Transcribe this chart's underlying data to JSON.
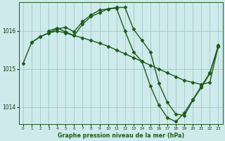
{
  "background_color": "#ceeaea",
  "line_color": "#1a5c1a",
  "grid_color": "#a0c8c8",
  "title": "Graphe pression niveau de la mer (hPa)",
  "xlim": [
    -0.5,
    23.5
  ],
  "ylim": [
    1013.55,
    1016.75
  ],
  "yticks": [
    1014,
    1015,
    1016
  ],
  "xticks": [
    0,
    1,
    2,
    3,
    4,
    5,
    6,
    7,
    8,
    9,
    10,
    11,
    12,
    13,
    14,
    15,
    16,
    17,
    18,
    19,
    20,
    21,
    22,
    23
  ],
  "series": [
    {
      "x": [
        0,
        1,
        2,
        3,
        4,
        5,
        6,
        7,
        8,
        9,
        10,
        11,
        12,
        13,
        14,
        15,
        16,
        17,
        18,
        19,
        20,
        21,
        22,
        23
      ],
      "y": [
        1015.15,
        1015.7,
        1015.85,
        1015.95,
        1016.0,
        1015.95,
        1015.88,
        1015.82,
        1015.75,
        1015.68,
        1015.6,
        1015.5,
        1015.4,
        1015.3,
        1015.2,
        1015.1,
        1015.0,
        1014.9,
        1014.8,
        1014.7,
        1014.65,
        1014.6,
        1014.65,
        1015.6
      ]
    },
    {
      "x": [
        1,
        2,
        3,
        4,
        5,
        6,
        7,
        8,
        9,
        10,
        11,
        12,
        13,
        14,
        15,
        16,
        17,
        18,
        19,
        20,
        21,
        22,
        23
      ],
      "y": [
        1015.7,
        1015.85,
        1015.95,
        1016.05,
        1016.1,
        1015.98,
        1016.25,
        1016.42,
        1016.55,
        1016.58,
        1016.6,
        1016.0,
        1015.45,
        1015.2,
        1014.55,
        1014.05,
        1013.72,
        1013.62,
        1013.85,
        1014.2,
        1014.55,
        1014.9,
        1015.6
      ]
    },
    {
      "x": [
        3,
        4,
        5,
        6,
        7,
        8,
        9,
        10,
        11,
        12,
        13,
        14,
        15,
        16,
        17,
        18,
        19,
        20,
        21,
        22,
        23
      ],
      "y": [
        1016.0,
        1016.08,
        1015.98,
        1015.88,
        1016.18,
        1016.38,
        1016.48,
        1016.58,
        1016.62,
        1016.62,
        1016.05,
        1015.75,
        1015.45,
        1014.62,
        1014.12,
        1013.82,
        1013.78,
        1014.18,
        1014.52,
        1014.88,
        1015.62
      ]
    }
  ],
  "marker": "D",
  "markersize": 2.5,
  "linewidth": 1.0
}
